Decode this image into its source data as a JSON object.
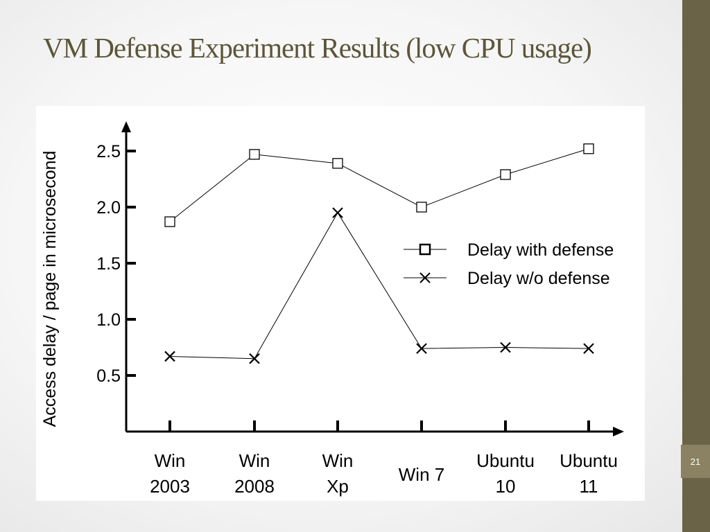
{
  "slide": {
    "title": "VM Defense Experiment Results (low CPU usage)",
    "page_number": "21"
  },
  "colors": {
    "title": "#5c5538",
    "side_bar": "#6b6347",
    "badge": "#8a8262",
    "plot_line": "#000000"
  },
  "chart_data": {
    "type": "line",
    "categories": [
      [
        "Win",
        "2003"
      ],
      [
        "Win",
        "2008"
      ],
      [
        "Win",
        "Xp"
      ],
      [
        "Win 7"
      ],
      [
        "Ubuntu",
        "10"
      ],
      [
        "Ubuntu",
        "11"
      ]
    ],
    "series": [
      {
        "name": "Delay with defense",
        "marker": "square",
        "values": [
          1.87,
          2.47,
          2.39,
          2.0,
          2.29,
          2.52
        ]
      },
      {
        "name": "Delay w/o defense",
        "marker": "x",
        "values": [
          0.67,
          0.65,
          1.95,
          0.74,
          0.75,
          0.74
        ]
      }
    ],
    "ylabel": "Access delay / page in microsecond",
    "xlabel": "",
    "yticks": [
      "2.5",
      "2.0",
      "1.5",
      "1.0",
      "0.5"
    ],
    "ylim": [
      0,
      2.75
    ],
    "grid": false,
    "legend_position": "right"
  }
}
